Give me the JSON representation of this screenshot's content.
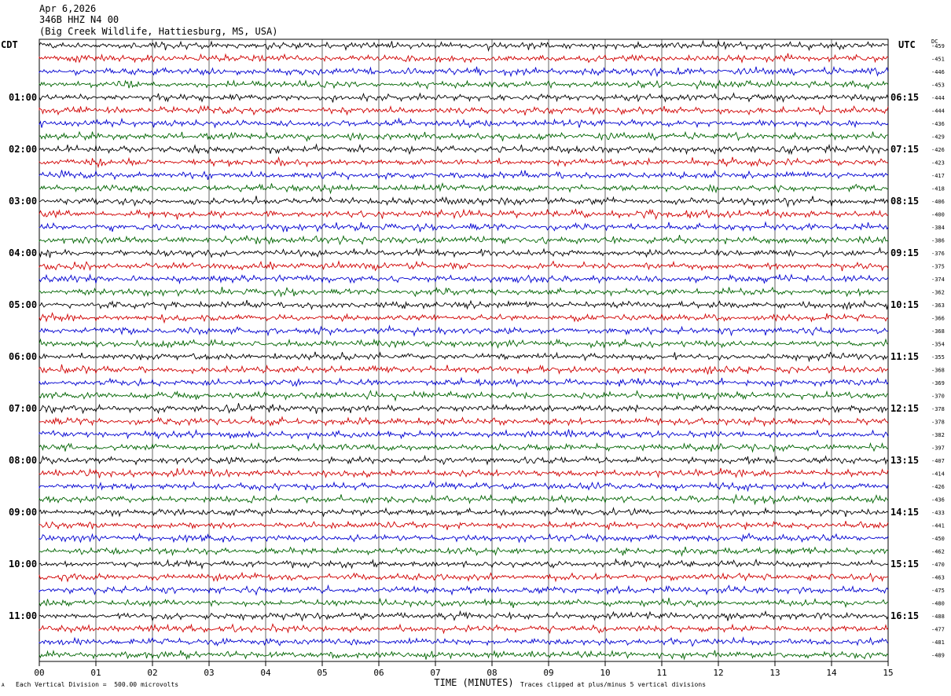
{
  "header": {
    "date": "Apr 6,2026",
    "station": "346B HHZ N4 00",
    "location": "(Big Creek Wildlife, Hattiesburg, MS, USA)"
  },
  "labels": {
    "left_timezone": "CDT",
    "right_timezone": "UTC",
    "dc_label": "DC"
  },
  "footer": {
    "scale_note": "Each Vertical Division =  500.00 microvolts",
    "clip_note": "Traces clipped at plus/minus 5 vertical divisions",
    "corner_mark": "A"
  },
  "chart_data": {
    "type": "line",
    "title": "346B HHZ N4 00",
    "xlabel": "TIME (MINUTES)",
    "x_ticks": [
      "00",
      "01",
      "02",
      "03",
      "04",
      "05",
      "06",
      "07",
      "08",
      "09",
      "10",
      "11",
      "12",
      "13",
      "14",
      "15"
    ],
    "xlim": [
      0,
      15
    ],
    "trace_count": 48,
    "trace_colors": [
      "#000000",
      "#d00000",
      "#0000d0",
      "#006400"
    ],
    "left_hour_labels": [
      "01:00",
      "02:00",
      "03:00",
      "04:00",
      "05:00",
      "06:00",
      "07:00",
      "08:00",
      "09:00",
      "10:00",
      "11:00"
    ],
    "right_hour_labels": [
      "06:15",
      "07:15",
      "08:15",
      "09:15",
      "10:15",
      "11:15",
      "12:15",
      "13:15",
      "14:15",
      "15:15",
      "16:15"
    ],
    "hour_label_trace_index": [
      4,
      8,
      12,
      16,
      20,
      24,
      28,
      32,
      36,
      40,
      44
    ],
    "dc_offsets": [
      -459,
      -451,
      -446,
      -453,
      -444,
      -444,
      -436,
      -429,
      -426,
      -423,
      -417,
      -418,
      -406,
      -400,
      -384,
      -386,
      -376,
      -375,
      -374,
      -362,
      -363,
      -366,
      -368,
      -354,
      -355,
      -368,
      -369,
      -370,
      -378,
      -378,
      -382,
      -397,
      -407,
      -414,
      -426,
      -436,
      -433,
      -441,
      -450,
      -462,
      -470,
      -463,
      -475,
      -480,
      -488,
      -477,
      -481,
      -489
    ]
  }
}
